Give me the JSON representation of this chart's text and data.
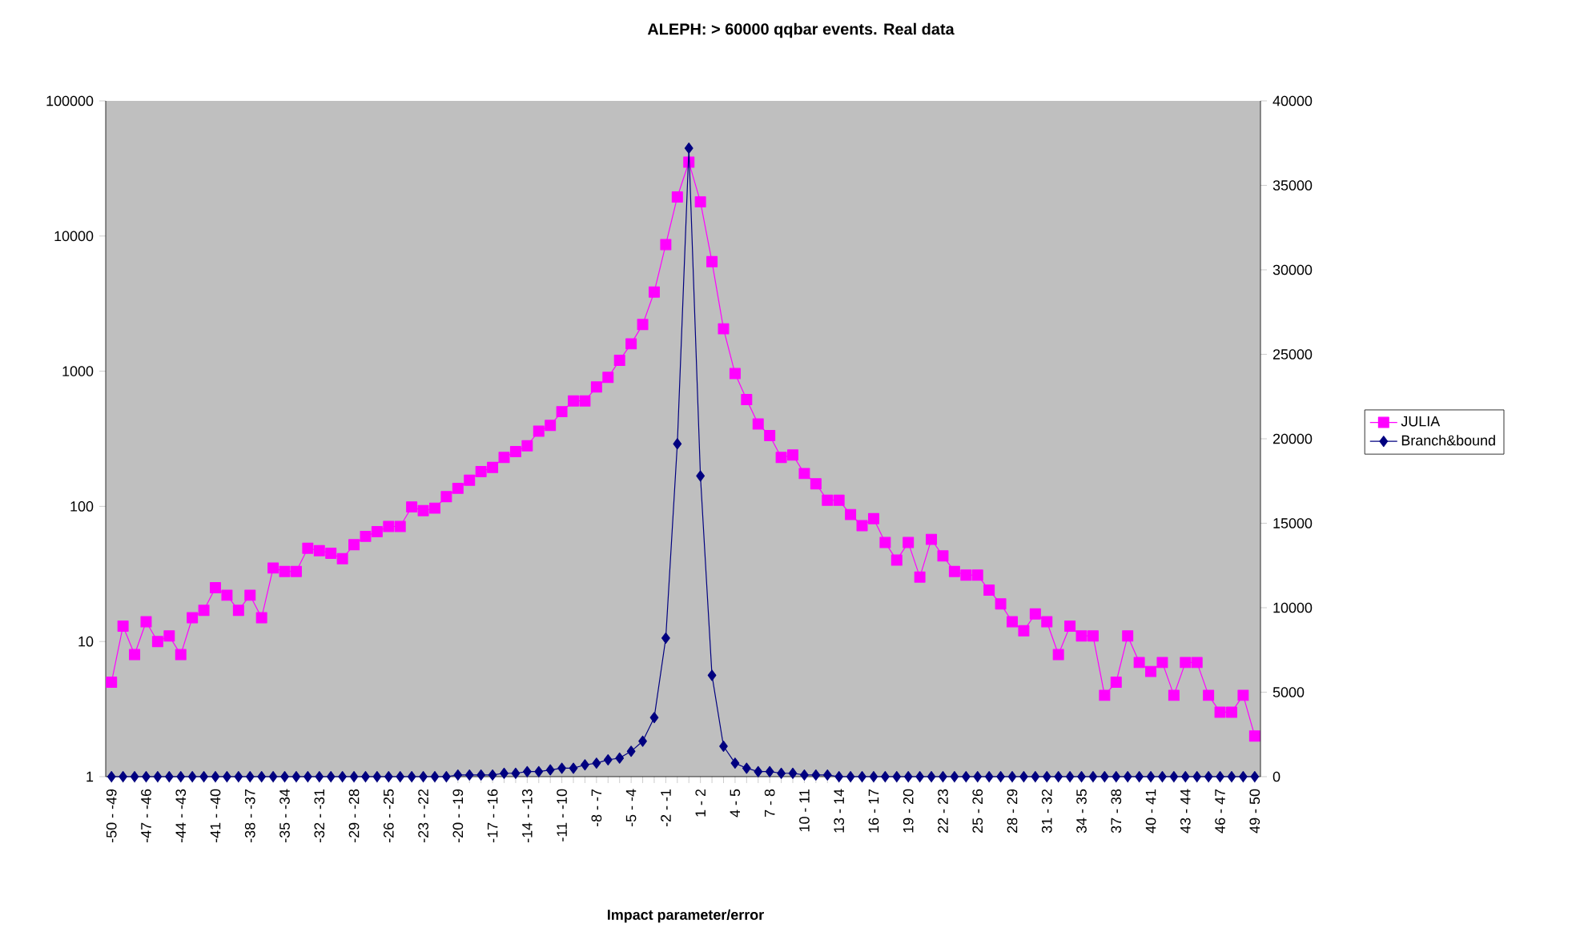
{
  "chart_data": {
    "type": "line",
    "title": "ALEPH: > 60000 qqbar events. Real data",
    "xlabel": "Impact  parameter/error",
    "categories": [
      "-50 - -49",
      null,
      null,
      "-47 - -46",
      null,
      null,
      "-44 - -43",
      null,
      null,
      "-41 - -40",
      null,
      null,
      "-38 - -37",
      null,
      null,
      "-35 - -34",
      null,
      null,
      "-32 - -31",
      null,
      null,
      "-29 - -28",
      null,
      null,
      "-26 - -25",
      null,
      null,
      "-23 - -22",
      null,
      null,
      "-20 - -19",
      null,
      null,
      "-17 - -16",
      null,
      null,
      "-14 - -13",
      null,
      null,
      "-11 - -10",
      null,
      null,
      "-8 - -7",
      null,
      null,
      "-5 - -4",
      null,
      null,
      "-2 - -1",
      null,
      null,
      "1 - 2",
      null,
      null,
      "4 - 5",
      null,
      null,
      "7 - 8",
      null,
      null,
      "10 - 11",
      null,
      null,
      "13 - 14",
      null,
      null,
      "16 - 17",
      null,
      null,
      "19 - 20",
      null,
      null,
      "22 - 23",
      null,
      null,
      "25 - 26",
      null,
      null,
      "28 - 29",
      null,
      null,
      "31 - 32",
      null,
      null,
      "34 - 35",
      null,
      null,
      "37 - 38",
      null,
      null,
      "40 - 41",
      null,
      null,
      "43 - 44",
      null,
      null,
      "46 - 47",
      null,
      null,
      "49 - 50"
    ],
    "series": [
      {
        "name": "JULIA",
        "color": "#ff00ff",
        "marker": "square",
        "values": [
          5,
          13,
          8,
          14,
          10,
          11,
          8,
          15,
          17,
          25,
          22,
          17,
          22,
          15,
          35,
          33,
          33,
          49,
          47,
          45,
          41,
          52,
          60,
          65,
          71,
          71,
          99,
          93,
          97,
          118,
          136,
          156,
          181,
          194,
          230,
          254,
          281,
          360,
          397,
          502,
          603,
          603,
          764,
          900,
          1203,
          1595,
          2214,
          3855,
          8650,
          19450,
          35200,
          17900,
          6460,
          2060,
          960,
          617,
          407,
          334,
          230,
          240,
          175,
          147,
          111,
          111,
          87,
          72,
          81,
          54,
          40,
          54,
          30,
          57,
          43,
          33,
          31,
          31,
          24,
          19,
          14,
          12,
          16,
          14,
          8,
          13,
          11,
          11,
          4,
          5,
          11,
          7,
          6,
          7,
          4,
          7,
          7,
          4,
          3,
          3,
          4,
          2
        ]
      },
      {
        "name": "Branch&bound",
        "color": "#000080",
        "marker": "diamond",
        "axis": "y2",
        "values": [
          0,
          0,
          0,
          0,
          0,
          0,
          0,
          0,
          0,
          0,
          0,
          0,
          0,
          0,
          0,
          0,
          0,
          0,
          0,
          0,
          0,
          0,
          0,
          0,
          0,
          0,
          0,
          0,
          0,
          0,
          100,
          100,
          100,
          100,
          200,
          200,
          300,
          300,
          400,
          500,
          500,
          700,
          800,
          1000,
          1100,
          1500,
          2100,
          3500,
          8200,
          19700,
          37200,
          17800,
          6000,
          1800,
          800,
          500,
          300,
          300,
          200,
          200,
          100,
          100,
          100,
          0,
          0,
          0,
          0,
          0,
          0,
          0,
          0,
          0,
          0,
          0,
          0,
          0,
          0,
          0,
          0,
          0,
          0,
          0,
          0,
          0,
          0,
          0,
          0,
          0,
          0,
          0,
          0,
          0,
          0,
          0,
          0,
          0,
          0,
          0,
          0,
          0
        ]
      }
    ],
    "log": "y",
    "ylim": [
      1,
      100000
    ],
    "yticks": [
      1,
      10,
      100,
      1000,
      10000,
      100000
    ],
    "y2lim": [
      0,
      40000
    ],
    "y2ticks": [
      0,
      5000,
      10000,
      15000,
      20000,
      25000,
      30000,
      35000,
      40000
    ],
    "legend": "right"
  }
}
